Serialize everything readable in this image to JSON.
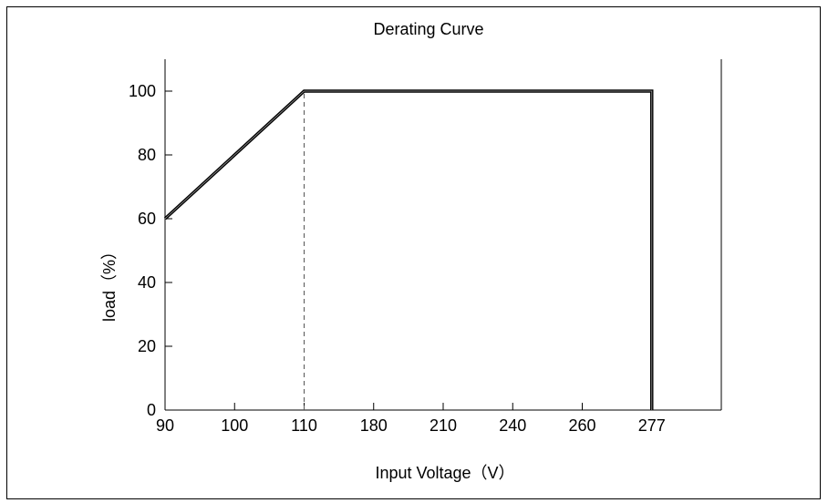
{
  "chart_data": {
    "type": "line",
    "title": "Derating Curve",
    "xlabel": "Input Voltage（V）",
    "ylabel": "load（%）",
    "x_categories": [
      "90",
      "100",
      "110",
      "180",
      "210",
      "240",
      "260",
      "277"
    ],
    "x_extra_ticks": 1,
    "y_ticks": [
      0,
      20,
      40,
      60,
      80,
      100
    ],
    "ylim": [
      0,
      110
    ],
    "grid": false,
    "legend": "none",
    "series": [
      {
        "points": [
          {
            "x": "90",
            "y": 60
          },
          {
            "x": "110",
            "y": 100
          },
          {
            "x": "277",
            "y": 100
          },
          {
            "x": "277",
            "y": 0
          }
        ]
      }
    ],
    "reference_lines": [
      {
        "orientation": "vertical",
        "x": "110",
        "from": 0,
        "to": 100,
        "style": "dashed"
      }
    ],
    "colors": {
      "line": "#000000",
      "frame": "#000000"
    }
  }
}
